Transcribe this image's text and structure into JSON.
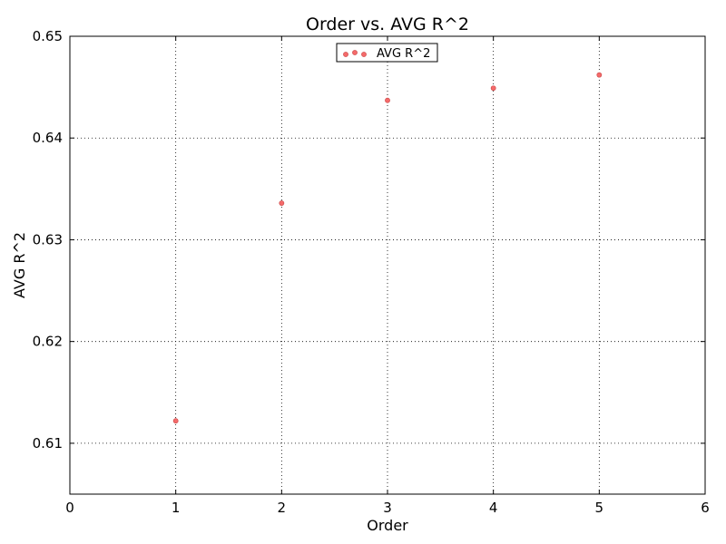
{
  "chart_data": {
    "type": "scatter",
    "title": "Order vs. AVG R^2",
    "xlabel": "Order",
    "ylabel": "AVG R^2",
    "xlim": [
      0,
      6
    ],
    "ylim": [
      0.605,
      0.65
    ],
    "xticks": [
      0,
      1,
      2,
      3,
      4,
      5,
      6
    ],
    "yticks": [
      0.61,
      0.62,
      0.63,
      0.64,
      0.65
    ],
    "ytick_labels": [
      "0.61",
      "0.62",
      "0.63",
      "0.64",
      "0.65"
    ],
    "grid": true,
    "legend": "upper-center",
    "series": [
      {
        "name": "AVG R^2",
        "color": "#f46a6a",
        "points": [
          {
            "x": 1,
            "y": 0.6122
          },
          {
            "x": 2,
            "y": 0.6336
          },
          {
            "x": 3,
            "y": 0.6437
          },
          {
            "x": 4,
            "y": 0.6449
          },
          {
            "x": 5,
            "y": 0.6462
          }
        ]
      }
    ]
  }
}
